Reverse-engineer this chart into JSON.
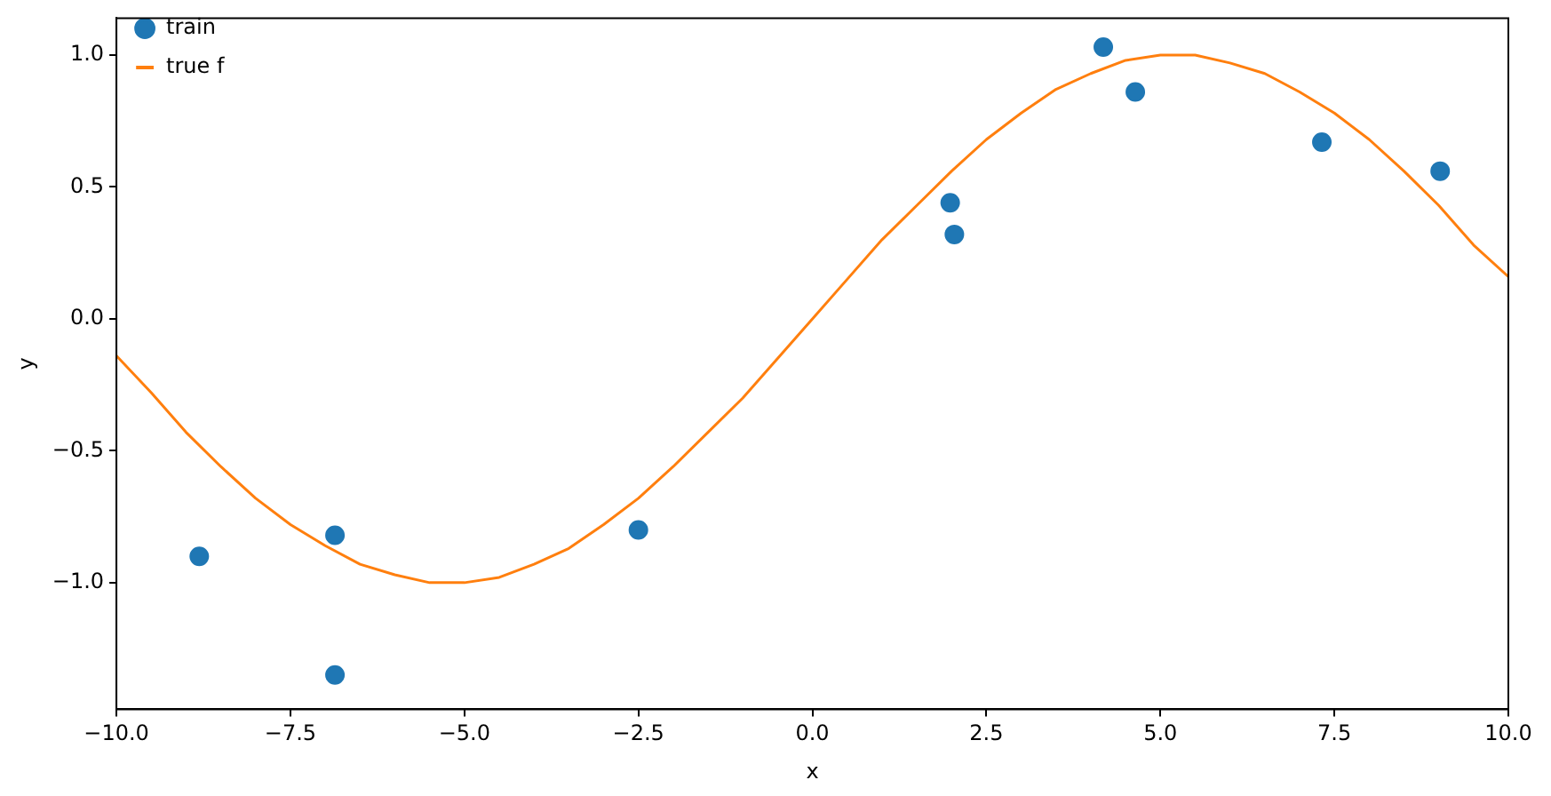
{
  "chart_data": {
    "type": "scatter",
    "xlabel": "x",
    "ylabel": "y",
    "series": [
      {
        "name": "train",
        "color": "#1f77b4",
        "marker": "circle",
        "x": [
          -8.81,
          -6.86,
          -6.86,
          -2.5,
          1.98,
          2.04,
          4.18,
          4.64,
          7.32,
          9.02
        ],
        "values": [
          -0.9,
          -0.82,
          -1.35,
          -0.8,
          0.44,
          0.32,
          1.03,
          0.86,
          0.67,
          0.56
        ]
      },
      {
        "name": "true f",
        "type": "line",
        "color": "#ff7f0e",
        "marker": "none",
        "line_style": "solid",
        "x": [
          -10,
          -9.5,
          -9,
          -8.5,
          -8,
          -7.5,
          -7,
          -6.5,
          -6,
          -5.5,
          -5,
          -4.5,
          -4,
          -3.5,
          -3,
          -2.5,
          -2,
          -1.5,
          -1,
          -0.5,
          0,
          0.5,
          1,
          1.5,
          2,
          2.5,
          3,
          3.5,
          4,
          4.5,
          5,
          5.5,
          6,
          6.5,
          7,
          7.5,
          8,
          8.5,
          9,
          9.5,
          10
        ],
        "values": [
          -0.14,
          -0.28,
          -0.43,
          -0.56,
          -0.68,
          -0.78,
          -0.86,
          -0.93,
          -0.97,
          -1.0,
          -1.0,
          -0.98,
          -0.93,
          -0.87,
          -0.78,
          -0.68,
          -0.56,
          -0.43,
          -0.3,
          -0.15,
          0,
          0.15,
          0.3,
          0.43,
          0.56,
          0.68,
          0.78,
          0.87,
          0.93,
          0.98,
          1.0,
          1.0,
          0.97,
          0.93,
          0.86,
          0.78,
          0.68,
          0.56,
          0.43,
          0.28,
          0.16
        ]
      }
    ],
    "xlim": [
      -10,
      10
    ],
    "xticks": [
      {
        "value": -10,
        "label": "−10.0"
      },
      {
        "value": -7.5,
        "label": "−7.5"
      },
      {
        "value": -5,
        "label": "−5.0"
      },
      {
        "value": -2.5,
        "label": "−2.5"
      },
      {
        "value": 0,
        "label": "0.0"
      },
      {
        "value": 2.5,
        "label": "2.5"
      },
      {
        "value": 5,
        "label": "5.0"
      },
      {
        "value": 7.5,
        "label": "7.5"
      },
      {
        "value": 10,
        "label": "10.0"
      }
    ],
    "ylim": [
      -1.48,
      1.14
    ],
    "yticks": [
      {
        "value": -1,
        "label": "−1.0"
      },
      {
        "value": -0.5,
        "label": "−0.5"
      },
      {
        "value": 0,
        "label": "0.0"
      },
      {
        "value": 0.5,
        "label": "0.5"
      },
      {
        "value": 1,
        "label": "1.0"
      }
    ],
    "grid": false,
    "legend": "top left"
  }
}
